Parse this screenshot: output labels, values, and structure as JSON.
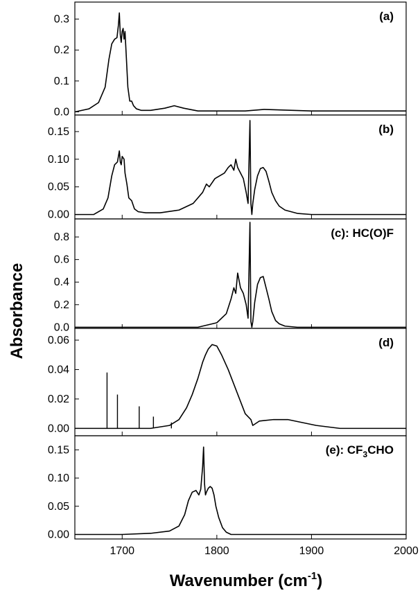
{
  "chart_data": {
    "type": "line",
    "layout": "5 vertically stacked panels sharing the x axis",
    "xlabel": "Wavenumber",
    "xlabel_unit_base": "(cm",
    "xlabel_unit_sup": "-1",
    "xlabel_unit_close": ")",
    "ylabel": "Absorbance",
    "xlim": [
      1650,
      2000
    ],
    "xticks": [
      "1700",
      "1800",
      "1900",
      "2000"
    ],
    "line_color": "#000000",
    "grid": false,
    "panels": [
      {
        "label": "(a)",
        "label_sub": "",
        "label_tail": "",
        "ylim": [
          -0.01,
          0.355
        ],
        "yticks": [
          "0.0",
          "0.1",
          "0.2",
          "0.3"
        ],
        "x": [
          1650,
          1665,
          1675,
          1682,
          1686,
          1689,
          1692,
          1694.5,
          1696,
          1697,
          1698,
          1699,
          1700,
          1701,
          1702,
          1703,
          1704,
          1706,
          1708,
          1710,
          1712,
          1715,
          1720,
          1730,
          1745,
          1755,
          1765,
          1780,
          1830,
          1850,
          1900,
          2000
        ],
        "y": [
          0.0,
          0.01,
          0.03,
          0.08,
          0.17,
          0.22,
          0.235,
          0.24,
          0.28,
          0.32,
          0.25,
          0.225,
          0.26,
          0.27,
          0.235,
          0.26,
          0.2,
          0.08,
          0.035,
          0.035,
          0.02,
          0.01,
          0.005,
          0.005,
          0.012,
          0.02,
          0.012,
          0.003,
          0.003,
          0.008,
          0.003,
          0.003
        ]
      },
      {
        "label": "(b)",
        "label_sub": "",
        "label_tail": "",
        "ylim": [
          -0.008,
          0.18
        ],
        "yticks": [
          "0.00",
          "0.05",
          "0.10",
          "0.15"
        ],
        "x": [
          1650,
          1670,
          1680,
          1685,
          1689,
          1692,
          1695,
          1697,
          1698,
          1699,
          1700,
          1702,
          1703,
          1705,
          1707,
          1710,
          1713,
          1717,
          1725,
          1740,
          1760,
          1775,
          1785,
          1789,
          1792,
          1798,
          1803,
          1808,
          1812,
          1815,
          1818,
          1820,
          1822,
          1825,
          1828,
          1831,
          1833,
          1835,
          1836,
          1837,
          1838,
          1840,
          1843,
          1846,
          1849,
          1852,
          1855,
          1858,
          1862,
          1866,
          1872,
          1885,
          1900,
          1930,
          1960,
          2000
        ],
        "y": [
          0.0,
          0.0,
          0.01,
          0.03,
          0.07,
          0.09,
          0.095,
          0.115,
          0.095,
          0.09,
          0.105,
          0.1,
          0.075,
          0.055,
          0.03,
          0.025,
          0.01,
          0.005,
          0.003,
          0.003,
          0.008,
          0.02,
          0.04,
          0.055,
          0.05,
          0.065,
          0.07,
          0.075,
          0.085,
          0.09,
          0.08,
          0.1,
          0.085,
          0.075,
          0.065,
          0.04,
          0.02,
          0.17,
          0.02,
          0.0,
          0.02,
          0.045,
          0.07,
          0.083,
          0.085,
          0.078,
          0.06,
          0.04,
          0.025,
          0.015,
          0.008,
          0.002,
          0.0,
          0.0,
          0.0,
          0.0
        ]
      },
      {
        "label": "(c): HC(O)F",
        "label_sub": "",
        "label_tail": "",
        "ylim": [
          -0.01,
          0.96
        ],
        "yticks": [
          "0.0",
          "0.2",
          "0.4",
          "0.6",
          "0.8"
        ],
        "x": [
          1650,
          1780,
          1800,
          1810,
          1815,
          1818,
          1820,
          1822,
          1825,
          1828,
          1831,
          1833,
          1835,
          1836,
          1837,
          1838,
          1840,
          1843,
          1846,
          1849,
          1852,
          1855,
          1858,
          1862,
          1866,
          1872,
          1885,
          1900,
          2000
        ],
        "y": [
          0.0,
          0.0,
          0.04,
          0.12,
          0.25,
          0.35,
          0.3,
          0.48,
          0.35,
          0.3,
          0.2,
          0.08,
          0.93,
          0.05,
          0.0,
          0.05,
          0.22,
          0.38,
          0.44,
          0.45,
          0.35,
          0.25,
          0.14,
          0.06,
          0.03,
          0.01,
          0.0,
          0.0,
          0.0
        ]
      },
      {
        "label": "(d)",
        "label_sub": "",
        "label_tail": "",
        "ylim": [
          -0.005,
          0.068
        ],
        "yticks": [
          "0.00",
          "0.02",
          "0.04",
          "0.06"
        ],
        "spikes": [
          [
            1684,
            0.038
          ],
          [
            1695,
            0.023
          ],
          [
            1718,
            0.015
          ],
          [
            1733,
            0.008
          ],
          [
            1752,
            0.004
          ]
        ],
        "x": [
          1650,
          1700,
          1730,
          1750,
          1760,
          1768,
          1774,
          1780,
          1785,
          1788,
          1791,
          1795,
          1800,
          1805,
          1812,
          1818,
          1824,
          1830,
          1836,
          1838,
          1845,
          1860,
          1875,
          1890,
          1905,
          1930,
          1960,
          2000
        ],
        "y": [
          0.0,
          0.0,
          0.0,
          0.002,
          0.006,
          0.014,
          0.023,
          0.034,
          0.045,
          0.05,
          0.054,
          0.057,
          0.056,
          0.05,
          0.04,
          0.03,
          0.02,
          0.01,
          0.006,
          0.002,
          0.005,
          0.006,
          0.006,
          0.004,
          0.002,
          0.0,
          0.0,
          0.0
        ]
      },
      {
        "label": "(e): CF",
        "label_sub": "3",
        "label_tail": "CHO",
        "ylim": [
          -0.008,
          0.175
        ],
        "yticks": [
          "0.00",
          "0.05",
          "0.10",
          "0.15"
        ],
        "x": [
          1650,
          1700,
          1730,
          1750,
          1760,
          1766,
          1770,
          1774,
          1778,
          1781,
          1783,
          1785,
          1786,
          1787,
          1788,
          1789,
          1791,
          1793,
          1795,
          1797,
          1799,
          1802,
          1806,
          1810,
          1815,
          1830,
          1850,
          2000
        ],
        "y": [
          0.0,
          0.0,
          0.002,
          0.006,
          0.015,
          0.035,
          0.06,
          0.075,
          0.078,
          0.07,
          0.08,
          0.12,
          0.155,
          0.09,
          0.07,
          0.075,
          0.082,
          0.085,
          0.082,
          0.07,
          0.05,
          0.03,
          0.012,
          0.004,
          0.0,
          0.0,
          0.0,
          0.0
        ]
      }
    ]
  }
}
